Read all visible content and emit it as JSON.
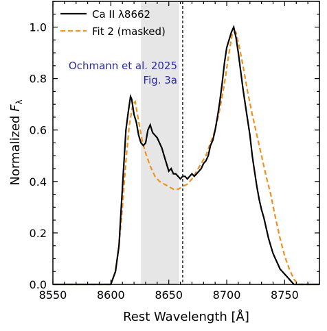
{
  "chart_data": {
    "type": "line",
    "xlabel": "Rest Wavelength [Å]",
    "ylabel_main": "Normalized ",
    "ylabel_var": "F",
    "ylabel_sub": "λ",
    "xlim": [
      8550,
      8780
    ],
    "ylim": [
      0.0,
      1.1
    ],
    "xticks": [
      8550,
      8600,
      8650,
      8700,
      8750
    ],
    "xtick_labels": [
      "8550",
      "8600",
      "8650",
      "8700",
      "8750"
    ],
    "yticks": [
      0.0,
      0.2,
      0.4,
      0.6,
      0.8,
      1.0
    ],
    "ytick_labels": [
      "0.0",
      "0.2",
      "0.4",
      "0.6",
      "0.8",
      "1.0"
    ],
    "masked_region": [
      8626,
      8659
    ],
    "line_center": 8662,
    "annotation": [
      "Ochmann et al. 2025",
      "Fig. 3a"
    ],
    "legend": {
      "placement": "top-left",
      "entries": [
        "Ca II λ8662",
        "Fit 2 (masked)"
      ]
    },
    "colors": {
      "observed": "#000000",
      "fit": "#f0901e",
      "mask": "#e6e6e6"
    },
    "series": [
      {
        "name": "Ca II λ8662",
        "style": "solid",
        "x": [
          8550,
          8575,
          8600,
          8604,
          8607,
          8609,
          8611,
          8613,
          8615,
          8617,
          8618,
          8620,
          8622,
          8624,
          8626,
          8628,
          8630,
          8632,
          8634,
          8636,
          8638,
          8640,
          8642,
          8644,
          8646,
          8648,
          8650,
          8652,
          8654,
          8656,
          8658,
          8660,
          8662,
          8664,
          8666,
          8668,
          8670,
          8672,
          8674,
          8676,
          8678,
          8680,
          8682,
          8684,
          8686,
          8688,
          8690,
          8692,
          8694,
          8696,
          8698,
          8700,
          8702,
          8704,
          8706,
          8708,
          8710,
          8712,
          8714,
          8716,
          8718,
          8720,
          8722,
          8724,
          8726,
          8728,
          8730,
          8732,
          8734,
          8736,
          8738,
          8740,
          8742,
          8744,
          8746,
          8748,
          8750,
          8752,
          8754,
          8756,
          8758,
          8760,
          8765,
          8780
        ],
        "y": [
          0.0,
          0.0,
          0.0,
          0.05,
          0.15,
          0.3,
          0.45,
          0.6,
          0.67,
          0.73,
          0.72,
          0.66,
          0.63,
          0.58,
          0.55,
          0.54,
          0.55,
          0.6,
          0.62,
          0.59,
          0.58,
          0.57,
          0.55,
          0.53,
          0.5,
          0.47,
          0.44,
          0.45,
          0.43,
          0.43,
          0.42,
          0.41,
          0.42,
          0.42,
          0.41,
          0.42,
          0.43,
          0.42,
          0.43,
          0.44,
          0.45,
          0.47,
          0.48,
          0.5,
          0.54,
          0.56,
          0.6,
          0.65,
          0.71,
          0.78,
          0.86,
          0.92,
          0.95,
          0.98,
          1.0,
          0.96,
          0.9,
          0.83,
          0.76,
          0.7,
          0.64,
          0.58,
          0.5,
          0.44,
          0.38,
          0.33,
          0.29,
          0.26,
          0.22,
          0.18,
          0.15,
          0.12,
          0.1,
          0.08,
          0.06,
          0.05,
          0.04,
          0.03,
          0.02,
          0.01,
          0.0,
          0.0,
          0.0,
          0.0
        ]
      },
      {
        "name": "Fit 2 (masked)",
        "style": "dashed",
        "x": [
          8550,
          8575,
          8600,
          8604,
          8607,
          8610,
          8613,
          8616,
          8619,
          8621,
          8623,
          8625,
          8627,
          8630,
          8634,
          8638,
          8642,
          8646,
          8650,
          8654,
          8658,
          8662,
          8666,
          8670,
          8674,
          8678,
          8682,
          8686,
          8690,
          8694,
          8698,
          8702,
          8705,
          8708,
          8711,
          8714,
          8718,
          8722,
          8726,
          8730,
          8734,
          8738,
          8742,
          8746,
          8750,
          8754,
          8758,
          8762,
          8780
        ],
        "y": [
          0.0,
          0.0,
          0.0,
          0.05,
          0.15,
          0.3,
          0.48,
          0.62,
          0.7,
          0.71,
          0.66,
          0.61,
          0.56,
          0.51,
          0.46,
          0.42,
          0.4,
          0.39,
          0.38,
          0.37,
          0.37,
          0.38,
          0.39,
          0.41,
          0.44,
          0.47,
          0.5,
          0.55,
          0.6,
          0.68,
          0.78,
          0.9,
          0.98,
          0.98,
          0.92,
          0.85,
          0.75,
          0.66,
          0.58,
          0.5,
          0.42,
          0.35,
          0.26,
          0.18,
          0.11,
          0.06,
          0.02,
          0.0,
          0.0
        ]
      }
    ]
  }
}
